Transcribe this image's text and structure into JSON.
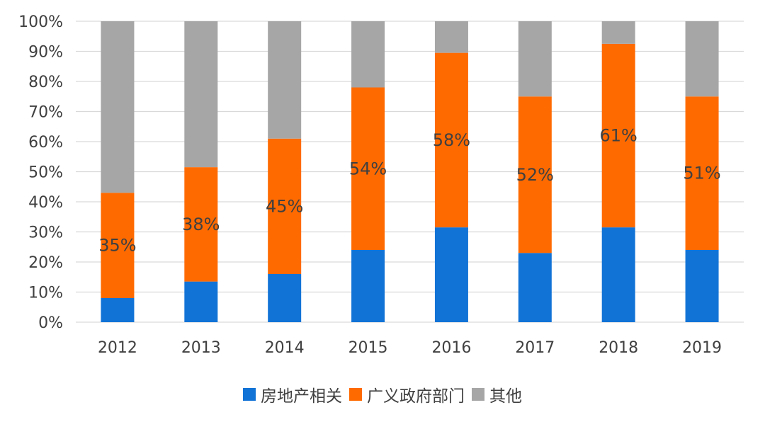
{
  "chart_data": {
    "type": "bar",
    "stacked": true,
    "categories": [
      "2012",
      "2013",
      "2014",
      "2015",
      "2016",
      "2017",
      "2018",
      "2019"
    ],
    "series": [
      {
        "name": "房地产相关",
        "color": "#1273D6",
        "values": [
          8,
          13.5,
          16,
          24,
          31.5,
          23,
          31.5,
          24
        ]
      },
      {
        "name": "广义政府部门",
        "color": "#FF6A00",
        "values": [
          35,
          38,
          45,
          54,
          58,
          52,
          61,
          51
        ]
      },
      {
        "name": "其他",
        "color": "#A6A6A6",
        "values": [
          57,
          48.5,
          39,
          22,
          10.5,
          25,
          7.5,
          25
        ]
      }
    ],
    "data_labels": [
      "35%",
      "38%",
      "45%",
      "54%",
      "58%",
      "52%",
      "61%",
      "51%"
    ],
    "y_ticks": [
      "0%",
      "10%",
      "20%",
      "30%",
      "40%",
      "50%",
      "60%",
      "70%",
      "80%",
      "90%",
      "100%"
    ],
    "ylim": [
      0,
      100
    ],
    "grid": true,
    "legend_position": "bottom",
    "title": "",
    "xlabel": "",
    "ylabel": ""
  }
}
